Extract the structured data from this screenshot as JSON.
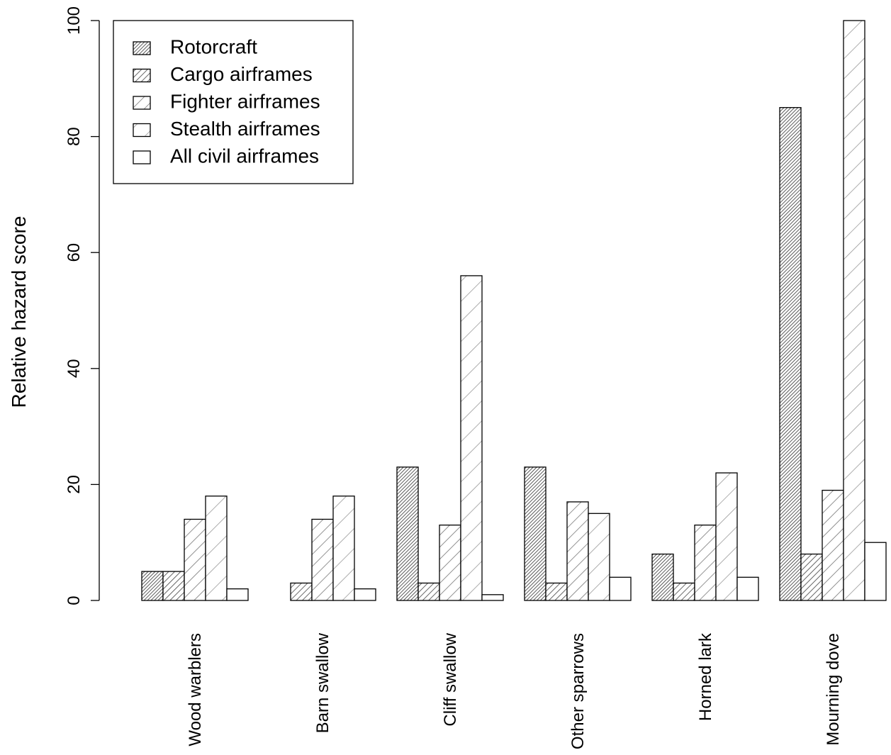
{
  "chart_data": {
    "type": "bar",
    "y_label": "Relative hazard score",
    "categories": [
      "Wood warblers",
      "Barn swallow",
      "Cliff swallow",
      "Other sparrows",
      "Horned lark",
      "Mourning dove"
    ],
    "series": [
      {
        "name": "Rotorcraft",
        "color": "#333333",
        "values": [
          5,
          0,
          23,
          23,
          8,
          85
        ]
      },
      {
        "name": "Cargo airframes",
        "color": "#444444",
        "values": [
          5,
          3,
          3,
          3,
          3,
          8
        ]
      },
      {
        "name": "Fighter airframes",
        "color": "#777777",
        "values": [
          14,
          14,
          13,
          17,
          13,
          19
        ]
      },
      {
        "name": "Stealth airframes",
        "color": "#999999",
        "values": [
          18,
          18,
          56,
          15,
          22,
          100
        ]
      },
      {
        "name": "All civil airframes",
        "color": "#ffffff",
        "values": [
          2,
          2,
          1,
          4,
          4,
          10
        ]
      }
    ],
    "ylim": [
      0,
      100
    ],
    "yticks": [
      0,
      20,
      40,
      60,
      80,
      100
    ],
    "legend": "top-left"
  }
}
